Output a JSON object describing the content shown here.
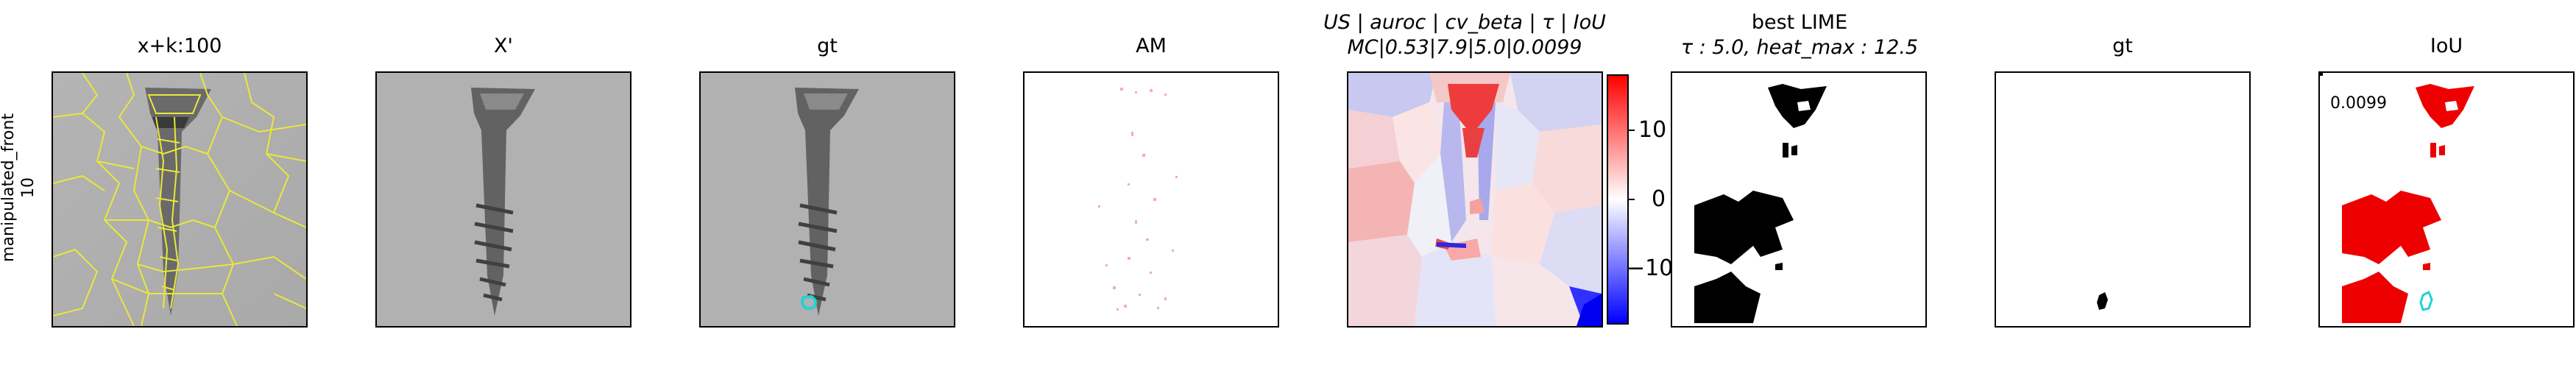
{
  "row_label": {
    "line1": "manipulated_front",
    "line2": "10"
  },
  "panels": [
    {
      "id": "p1",
      "title": "x+k:100"
    },
    {
      "id": "p2",
      "title": "X'"
    },
    {
      "id": "p3",
      "title": "gt"
    },
    {
      "id": "p4",
      "title": "AM"
    },
    {
      "id": "p5",
      "title_line1": "US | auroc | cv_beta | τ | IoU",
      "title_line2": "MC|0.53|7.9|5.0|0.0099"
    },
    {
      "id": "p6",
      "title_line1": "best LIME",
      "title_line2": "τ : 5.0, heat_max : 12.5"
    },
    {
      "id": "p7",
      "title": "gt"
    },
    {
      "id": "p8",
      "title": "IoU",
      "annotation": "0.0099"
    }
  ],
  "colorbar": {
    "ticks": [
      {
        "value": 10,
        "label": "10"
      },
      {
        "value": 0,
        "label": "0"
      },
      {
        "value": -10,
        "label": "−10"
      }
    ],
    "range": [
      -18,
      18
    ],
    "colors": {
      "low": "#0000ff",
      "mid": "#ffffff",
      "high": "#ff0000"
    }
  },
  "chart_data": {
    "type": "heatmap",
    "description_type": "image-panels",
    "us_metrics": {
      "US": "MC",
      "auroc": 0.53,
      "cv_beta": 7.9,
      "tau": 5.0,
      "IoU": 0.0099
    },
    "best_lime": {
      "tau": 5.0,
      "heat_max": 12.5
    }
  }
}
